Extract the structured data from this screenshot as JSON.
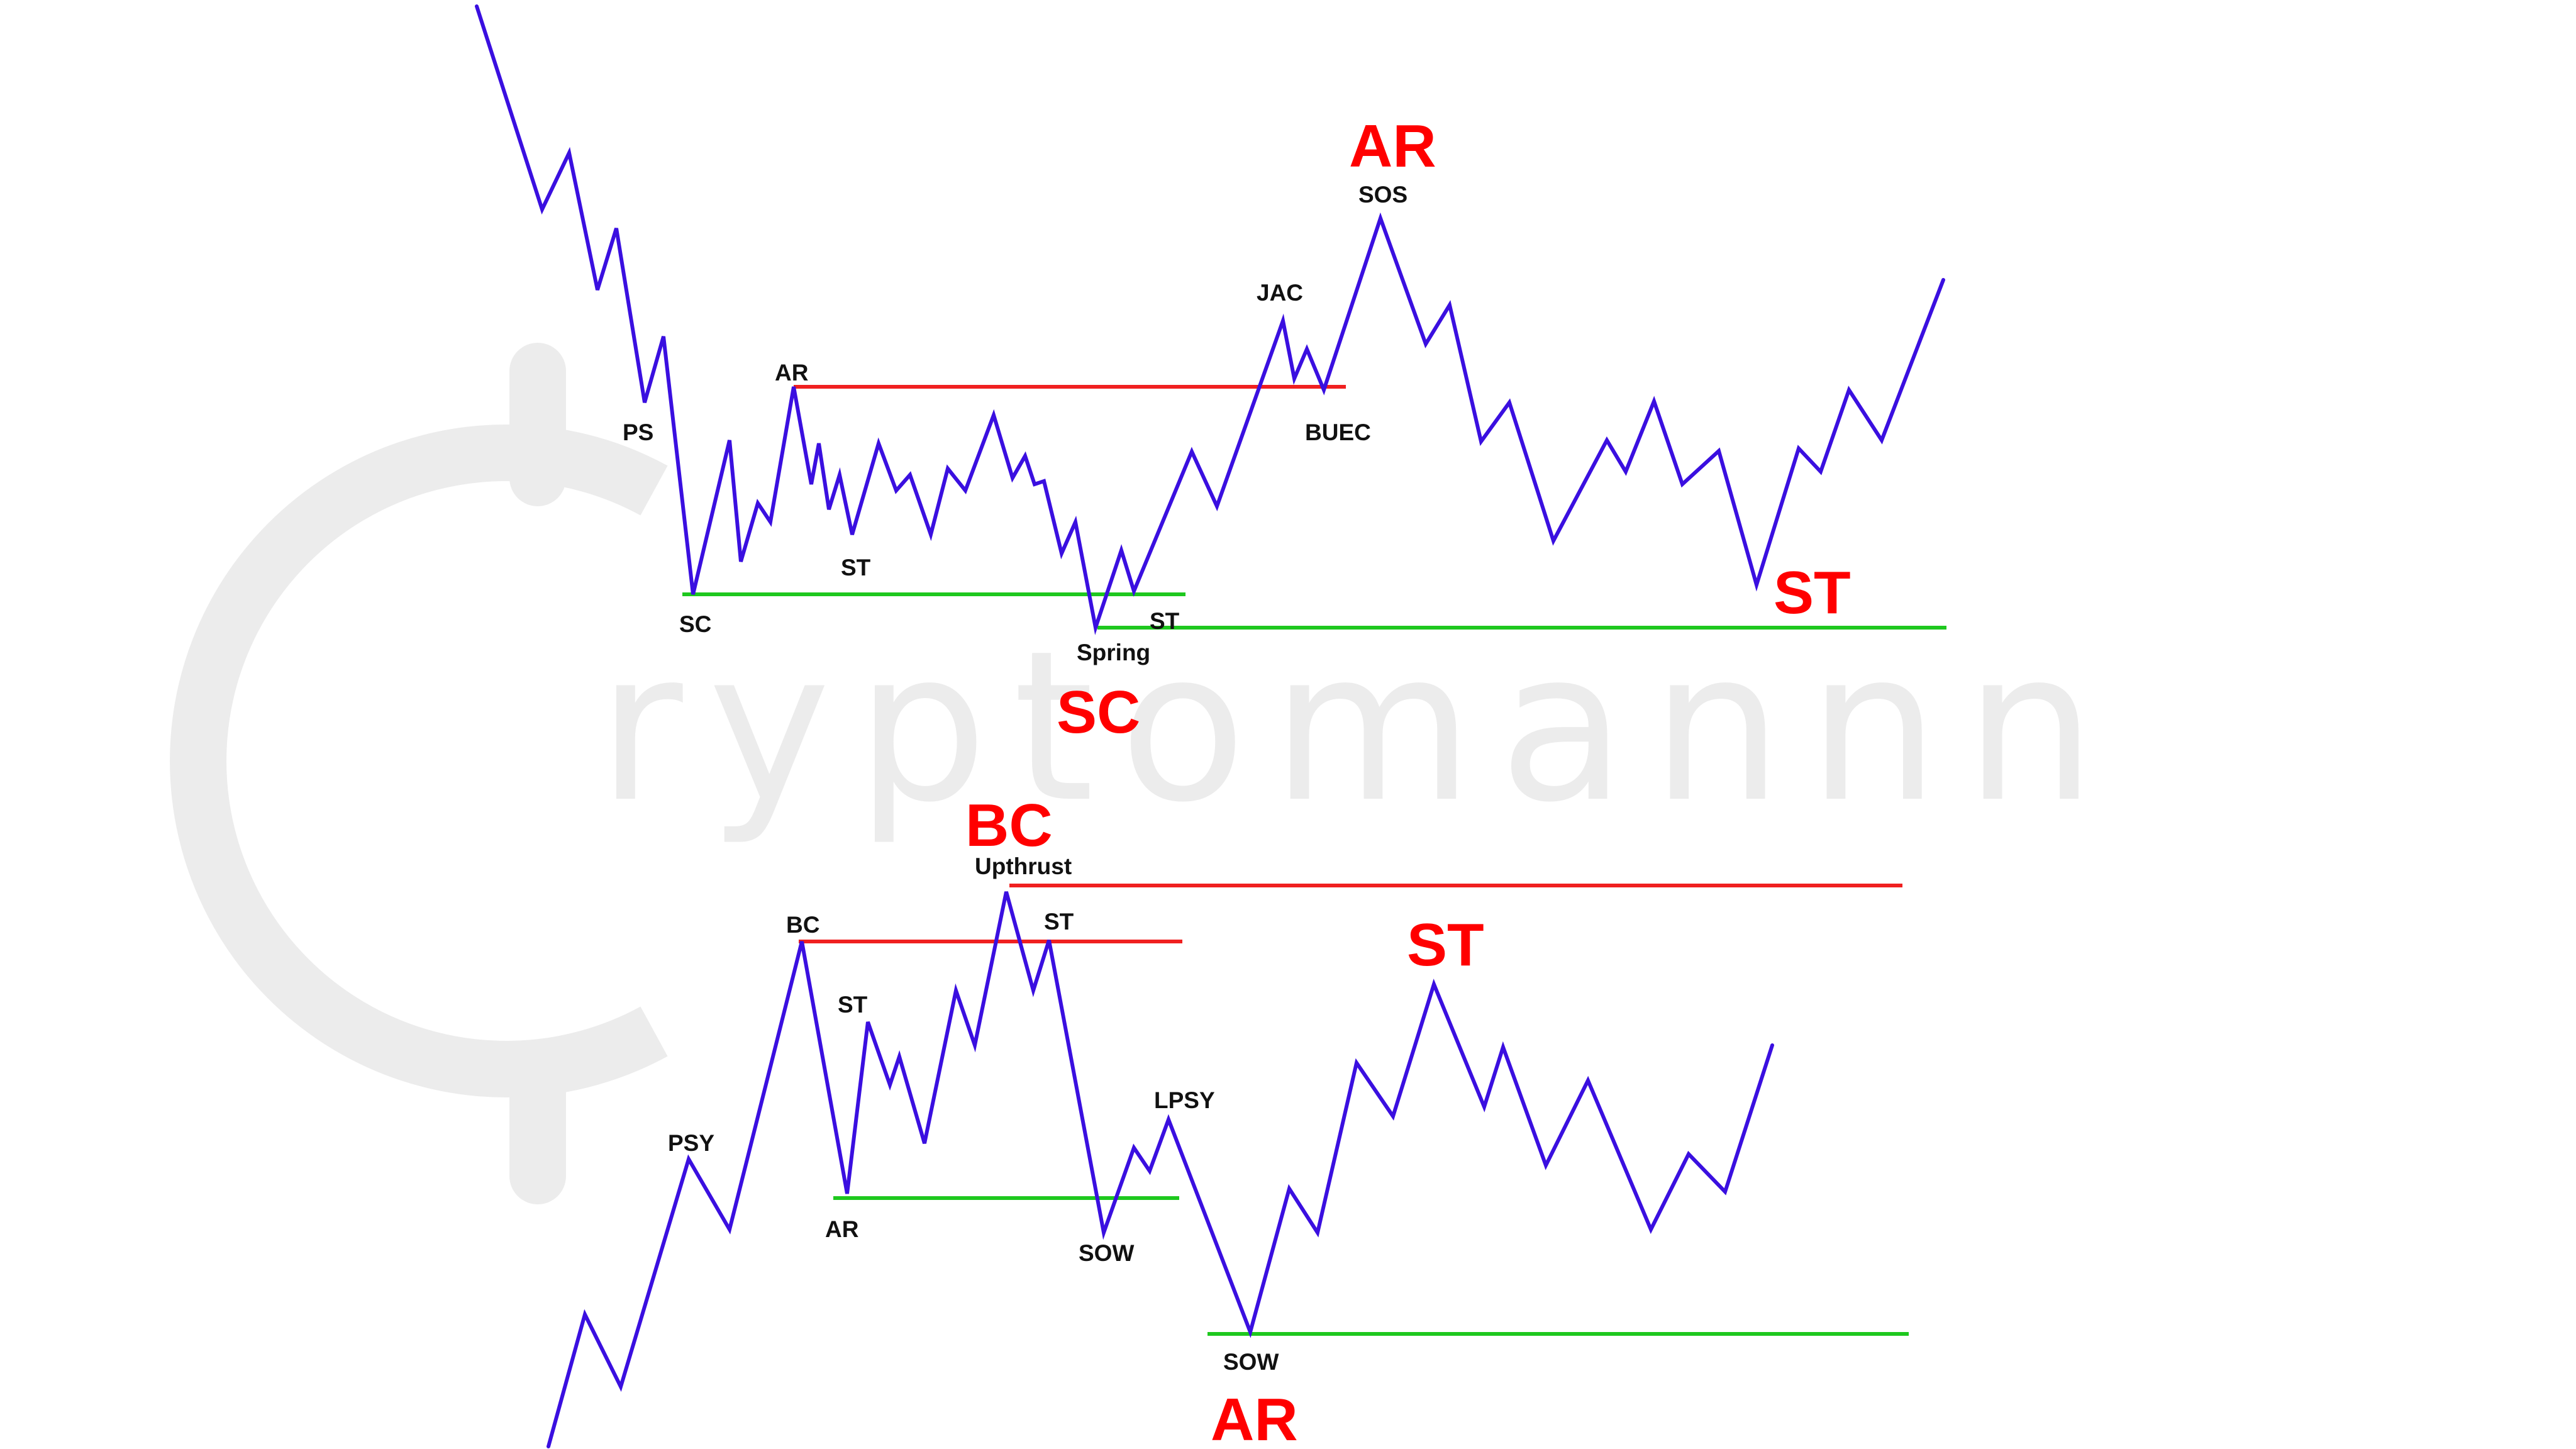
{
  "colors": {
    "price": "#3a0fe0",
    "resistance": "#f02020",
    "support": "#1ec81e",
    "annotation_big": "#ff0000",
    "annotation_small": "#111111",
    "watermark": "#ececec"
  },
  "watermark": {
    "text": "ryptomannn",
    "icon": "bitcoin-c-icon"
  },
  "top_diagram": {
    "labels": {
      "ps": "PS",
      "sc": "SC",
      "ar": "AR",
      "st1": "ST",
      "spring": "Spring",
      "st2": "ST",
      "jac": "JAC",
      "buec": "BUEC",
      "sos": "SOS"
    },
    "phase_labels": {
      "ar": "AR",
      "sc": "SC",
      "st": "ST"
    }
  },
  "bottom_diagram": {
    "labels": {
      "psy": "PSY",
      "bc": "BC",
      "ar": "AR",
      "st1": "ST",
      "upthrust": "Upthrust",
      "st2": "ST",
      "sow1": "SOW",
      "lpsy": "LPSY",
      "sow2": "SOW"
    },
    "phase_labels": {
      "bc": "BC",
      "st": "ST",
      "ar": "AR"
    }
  }
}
